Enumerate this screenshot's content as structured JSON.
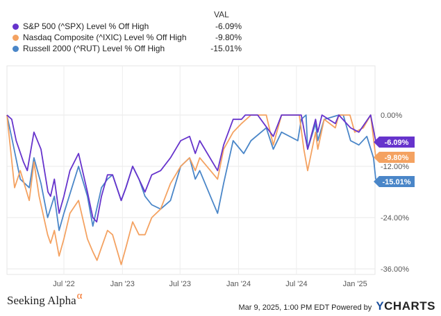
{
  "legend": {
    "header": "VAL",
    "items": [
      {
        "name": "S&P 500 (^SPX) Level % Off High",
        "value": "-6.09%",
        "color": "#6633cc"
      },
      {
        "name": "Nasdaq Composite (^IXIC) Level % Off High",
        "value": "-9.80%",
        "color": "#f4a261"
      },
      {
        "name": "Russell 2000 (^RUT) Level % Off High",
        "value": "-15.01%",
        "color": "#4a86c8"
      }
    ]
  },
  "chart_data": {
    "type": "line",
    "x_ticks": [
      "Jul '22",
      "Jan '23",
      "Jul '23",
      "Jan '24",
      "Jul '24",
      "Jan '25"
    ],
    "y_ticks": [
      "0.00%",
      "-12.00%",
      "-24.00%",
      "-36.00%"
    ],
    "ylim": [
      -38,
      0
    ],
    "grid": true,
    "legend_placement": "top-left",
    "end_labels": [
      "-6.09%",
      "-9.80%",
      "-15.01%"
    ],
    "series": [
      {
        "name": "S&P 500 (^SPX) Level % Off High",
        "color": "#6633cc",
        "points": [
          [
            "2022-01-03",
            0
          ],
          [
            "2022-01-18",
            -1
          ],
          [
            "2022-02-01",
            -6
          ],
          [
            "2022-02-24",
            -11
          ],
          [
            "2022-03-08",
            -13
          ],
          [
            "2022-03-29",
            -4
          ],
          [
            "2022-04-20",
            -8
          ],
          [
            "2022-05-12",
            -18
          ],
          [
            "2022-05-20",
            -19
          ],
          [
            "2022-06-01",
            -15
          ],
          [
            "2022-06-16",
            -23
          ],
          [
            "2022-07-01",
            -19
          ],
          [
            "2022-07-20",
            -13
          ],
          [
            "2022-08-16",
            -9
          ],
          [
            "2022-09-13",
            -18
          ],
          [
            "2022-09-30",
            -24
          ],
          [
            "2022-10-12",
            -25
          ],
          [
            "2022-10-27",
            -19
          ],
          [
            "2022-11-15",
            -14
          ],
          [
            "2022-12-01",
            -14
          ],
          [
            "2022-12-28",
            -20
          ],
          [
            "2023-01-12",
            -17
          ],
          [
            "2023-02-02",
            -12
          ],
          [
            "2023-02-22",
            -15
          ],
          [
            "2023-03-13",
            -18
          ],
          [
            "2023-04-03",
            -14
          ],
          [
            "2023-05-01",
            -13
          ],
          [
            "2023-06-01",
            -10
          ],
          [
            "2023-07-03",
            -6
          ],
          [
            "2023-07-31",
            -5
          ],
          [
            "2023-08-18",
            -9
          ],
          [
            "2023-09-01",
            -6
          ],
          [
            "2023-10-27",
            -13
          ],
          [
            "2023-11-15",
            -7
          ],
          [
            "2023-12-15",
            -1
          ],
          [
            "2024-01-10",
            -1
          ],
          [
            "2024-01-22",
            0
          ],
          [
            "2024-03-01",
            0
          ],
          [
            "2024-04-19",
            -5
          ],
          [
            "2024-05-15",
            0
          ],
          [
            "2024-07-16",
            0
          ],
          [
            "2024-08-05",
            -8
          ],
          [
            "2024-08-30",
            -1
          ],
          [
            "2024-09-06",
            -4
          ],
          [
            "2024-09-19",
            0
          ],
          [
            "2024-10-31",
            -2
          ],
          [
            "2024-11-11",
            0
          ],
          [
            "2024-12-18",
            -3
          ],
          [
            "2025-01-13",
            -4
          ],
          [
            "2025-02-19",
            0
          ],
          [
            "2025-03-07",
            -6.09
          ]
        ]
      },
      {
        "name": "Nasdaq Composite (^IXIC) Level % Off High",
        "color": "#f4a261",
        "points": [
          [
            "2022-01-03",
            0
          ],
          [
            "2022-01-27",
            -17
          ],
          [
            "2022-02-14",
            -13
          ],
          [
            "2022-03-14",
            -20
          ],
          [
            "2022-03-29",
            -11
          ],
          [
            "2022-04-14",
            -19
          ],
          [
            "2022-05-11",
            -28
          ],
          [
            "2022-05-20",
            -30
          ],
          [
            "2022-06-01",
            -27
          ],
          [
            "2022-06-16",
            -33
          ],
          [
            "2022-07-01",
            -29
          ],
          [
            "2022-07-20",
            -23
          ],
          [
            "2022-08-16",
            -20
          ],
          [
            "2022-09-13",
            -29
          ],
          [
            "2022-09-30",
            -32
          ],
          [
            "2022-10-13",
            -34
          ],
          [
            "2022-10-27",
            -31
          ],
          [
            "2022-11-15",
            -27
          ],
          [
            "2022-12-01",
            -28
          ],
          [
            "2022-12-28",
            -35
          ],
          [
            "2023-01-12",
            -31
          ],
          [
            "2023-02-02",
            -25
          ],
          [
            "2023-02-22",
            -28
          ],
          [
            "2023-03-13",
            -28
          ],
          [
            "2023-04-03",
            -24
          ],
          [
            "2023-05-01",
            -22
          ],
          [
            "2023-06-01",
            -16
          ],
          [
            "2023-07-03",
            -12
          ],
          [
            "2023-07-31",
            -10
          ],
          [
            "2023-08-18",
            -13
          ],
          [
            "2023-09-01",
            -10
          ],
          [
            "2023-10-27",
            -15
          ],
          [
            "2023-11-15",
            -8
          ],
          [
            "2023-12-15",
            -4
          ],
          [
            "2024-01-10",
            -2
          ],
          [
            "2024-02-09",
            0
          ],
          [
            "2024-03-28",
            0
          ],
          [
            "2024-04-19",
            -7
          ],
          [
            "2024-05-15",
            0
          ],
          [
            "2024-07-10",
            0
          ],
          [
            "2024-07-24",
            -8
          ],
          [
            "2024-08-05",
            -13
          ],
          [
            "2024-08-30",
            -4
          ],
          [
            "2024-09-06",
            -8
          ],
          [
            "2024-09-26",
            -1
          ],
          [
            "2024-10-31",
            -3
          ],
          [
            "2024-11-11",
            0
          ],
          [
            "2024-12-16",
            0
          ],
          [
            "2024-12-31",
            -4
          ],
          [
            "2025-01-27",
            -3
          ],
          [
            "2025-02-19",
            0
          ],
          [
            "2025-03-07",
            -9.8
          ]
        ]
      },
      {
        "name": "Russell 2000 (^RUT) Level % Off High",
        "color": "#4a86c8",
        "points": [
          [
            "2022-01-03",
            0
          ],
          [
            "2022-01-20",
            -6
          ],
          [
            "2022-02-14",
            -15
          ],
          [
            "2022-03-14",
            -17
          ],
          [
            "2022-03-29",
            -10
          ],
          [
            "2022-04-20",
            -16
          ],
          [
            "2022-05-11",
            -24
          ],
          [
            "2022-06-01",
            -19
          ],
          [
            "2022-06-16",
            -27
          ],
          [
            "2022-07-01",
            -23
          ],
          [
            "2022-08-16",
            -12
          ],
          [
            "2022-09-13",
            -19
          ],
          [
            "2022-09-30",
            -26
          ],
          [
            "2022-10-27",
            -17
          ],
          [
            "2022-11-15",
            -15
          ],
          [
            "2022-12-01",
            -14
          ],
          [
            "2022-12-28",
            -20
          ],
          [
            "2023-01-12",
            -17
          ],
          [
            "2023-02-02",
            -12
          ],
          [
            "2023-02-22",
            -15
          ],
          [
            "2023-03-13",
            -19
          ],
          [
            "2023-04-03",
            -21
          ],
          [
            "2023-05-01",
            -22
          ],
          [
            "2023-06-01",
            -20
          ],
          [
            "2023-07-03",
            -12
          ],
          [
            "2023-07-31",
            -10
          ],
          [
            "2023-08-18",
            -15
          ],
          [
            "2023-09-01",
            -13
          ],
          [
            "2023-10-10",
            -20
          ],
          [
            "2023-10-27",
            -23
          ],
          [
            "2023-11-15",
            -16
          ],
          [
            "2023-12-15",
            -6
          ],
          [
            "2024-01-17",
            -9
          ],
          [
            "2024-02-09",
            -6
          ],
          [
            "2024-03-28",
            -3
          ],
          [
            "2024-04-19",
            -8
          ],
          [
            "2024-05-15",
            -4
          ],
          [
            "2024-07-05",
            -6
          ],
          [
            "2024-07-16",
            -1
          ],
          [
            "2024-07-31",
            0
          ],
          [
            "2024-08-05",
            -8
          ],
          [
            "2024-08-30",
            -2
          ],
          [
            "2024-09-06",
            -6
          ],
          [
            "2024-09-26",
            -1
          ],
          [
            "2024-11-11",
            0
          ],
          [
            "2024-11-25",
            0
          ],
          [
            "2024-12-18",
            -6
          ],
          [
            "2025-01-13",
            -7
          ],
          [
            "2025-02-07",
            -5
          ],
          [
            "2025-02-28",
            -10
          ],
          [
            "2025-03-07",
            -15.01
          ]
        ]
      }
    ]
  },
  "branding": {
    "left": "Seeking Alpha",
    "alpha": "α"
  },
  "footer": {
    "timestamp": "Mar 9, 2025, 1:00 PM EDT Powered by",
    "logo_y": "Y",
    "logo_rest": "CHARTS"
  }
}
